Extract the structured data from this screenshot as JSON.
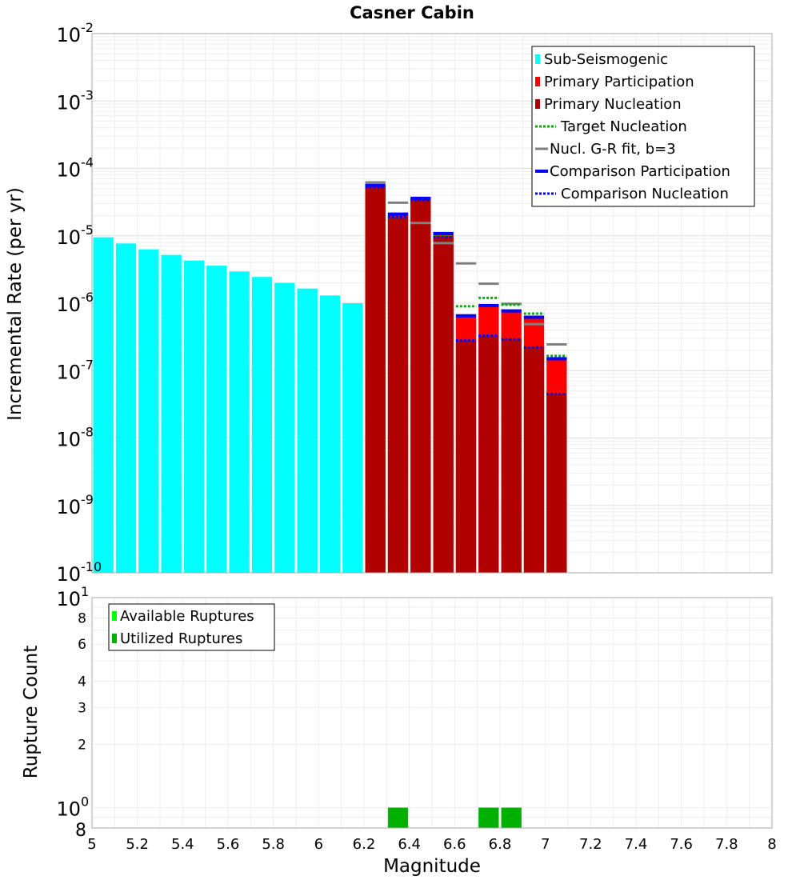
{
  "chart_data": {
    "type": "bar",
    "title": "Casner Cabin",
    "xlabel": "Magnitude",
    "xlim": [
      5,
      8
    ],
    "x_ticks": [
      "5",
      "5.2",
      "5.4",
      "5.6",
      "5.8",
      "6",
      "6.2",
      "6.4",
      "6.6",
      "6.8",
      "7",
      "7.2",
      "7.4",
      "7.6",
      "7.8",
      "8"
    ],
    "top_panel": {
      "ylabel": "Incremental Rate (per yr)",
      "yscale": "log",
      "ylim": [
        1e-10,
        0.01
      ],
      "y_ticks": [
        {
          "base": "10",
          "exp": "-2",
          "value": 0.01
        },
        {
          "base": "10",
          "exp": "-3",
          "value": 0.001
        },
        {
          "base": "10",
          "exp": "-4",
          "value": 0.0001
        },
        {
          "base": "10",
          "exp": "-5",
          "value": 1e-05
        },
        {
          "base": "10",
          "exp": "-6",
          "value": 1e-06
        },
        {
          "base": "10",
          "exp": "-7",
          "value": 1e-07
        },
        {
          "base": "10",
          "exp": "-8",
          "value": 1e-08
        },
        {
          "base": "10",
          "exp": "-9",
          "value": 1e-09
        },
        {
          "base": "10",
          "exp": "-10",
          "value": 1e-10
        }
      ],
      "legend": {
        "position": "top-right",
        "entries": [
          {
            "label": "Sub-Seismogenic",
            "color": "#00ffff",
            "style": "bar"
          },
          {
            "label": "Primary Participation",
            "color": "#ff0000",
            "style": "bar"
          },
          {
            "label": "Primary Nucleation",
            "color": "#b00000",
            "style": "bar"
          },
          {
            "label": "Target Nucleation",
            "color": "#00aa00",
            "style": "dotted"
          },
          {
            "label": "Nucl. G-R fit, b=3",
            "color": "#808080",
            "style": "solid"
          },
          {
            "label": "Comparison Participation",
            "color": "#0000ff",
            "style": "solid"
          },
          {
            "label": "Comparison Nucleation",
            "color": "#0000ff",
            "style": "dotted"
          }
        ]
      },
      "series": [
        {
          "name": "Sub-Seismogenic",
          "color": "#00ffff",
          "bins": [
            5.05,
            5.15,
            5.25,
            5.35,
            5.45,
            5.55,
            5.65,
            5.75,
            5.85,
            5.95,
            6.05,
            6.15
          ],
          "values": [
            9.5e-06,
            7.7e-06,
            6.3e-06,
            5.2e-06,
            4.3e-06,
            3.6e-06,
            2.95e-06,
            2.45e-06,
            2e-06,
            1.65e-06,
            1.3e-06,
            1e-06
          ]
        },
        {
          "name": "Primary Participation",
          "color": "#ff0000",
          "bins": [
            6.25,
            6.35,
            6.45,
            6.55,
            6.65,
            6.75,
            6.85,
            6.95,
            7.05
          ],
          "values": [
            5.6e-05,
            2e-05,
            3.6e-05,
            1.05e-05,
            6.3e-07,
            9e-07,
            7.5e-07,
            6e-07,
            1.5e-07
          ]
        },
        {
          "name": "Primary Nucleation",
          "color": "#b00000",
          "bins": [
            6.25,
            6.35,
            6.45,
            6.55,
            6.65,
            6.75,
            6.85,
            6.95,
            7.05
          ],
          "values": [
            5.2e-05,
            1.9e-05,
            3.4e-05,
            9.5e-06,
            2.8e-07,
            3.3e-07,
            2.9e-07,
            2.2e-07,
            4.5e-08
          ]
        },
        {
          "name": "Target Nucleation",
          "color": "#00aa00",
          "bins": [
            6.25,
            6.35,
            6.45,
            6.55,
            6.65,
            6.75,
            6.85,
            6.95,
            7.05
          ],
          "values": [
            5.2e-05,
            1.9e-05,
            3.4e-05,
            9.8e-06,
            9e-07,
            1.2e-06,
            9.5e-07,
            7e-07,
            1.65e-07
          ]
        },
        {
          "name": "Nucl. G-R fit, b=3",
          "color": "#808080",
          "bins": [
            6.25,
            6.35,
            6.45,
            6.55,
            6.65,
            6.75,
            6.85,
            6.95,
            7.05
          ],
          "values": [
            6.2e-05,
            3.1e-05,
            1.55e-05,
            7.8e-06,
            3.9e-06,
            1.95e-06,
            9.8e-07,
            4.9e-07,
            2.45e-07
          ]
        },
        {
          "name": "Comparison Participation",
          "color": "#0000ff",
          "bins": [
            6.25,
            6.35,
            6.45,
            6.55,
            6.65,
            6.75,
            6.85,
            6.95,
            7.05
          ],
          "values": [
            5.6e-05,
            2.1e-05,
            3.6e-05,
            1.08e-05,
            6.5e-07,
            9.2e-07,
            7.7e-07,
            6.2e-07,
            1.5e-07
          ]
        },
        {
          "name": "Comparison Nucleation",
          "color": "#0000ff",
          "bins": [
            6.25,
            6.35,
            6.45,
            6.55,
            6.65,
            6.75,
            6.85,
            6.95,
            7.05
          ],
          "values": [
            5.2e-05,
            1.9e-05,
            3.4e-05,
            9.5e-06,
            2.8e-07,
            3.3e-07,
            2.9e-07,
            2.2e-07,
            4.5e-08
          ]
        }
      ]
    },
    "bottom_panel": {
      "ylabel": "Rupture Count",
      "yscale": "log",
      "ylim": [
        0.8,
        10
      ],
      "y_ticks": [
        {
          "label": "8",
          "value": 8
        },
        {
          "label": "6",
          "value": 6
        },
        {
          "label": "4",
          "value": 4
        },
        {
          "label": "3",
          "value": 3
        },
        {
          "label": "2",
          "value": 2
        }
      ],
      "y_major_ticks": [
        {
          "base": "10",
          "exp": "1",
          "value": 10
        },
        {
          "base": "10",
          "exp": "0",
          "value": 1
        }
      ],
      "y_bottom_label": {
        "label": "8",
        "value": 0.8
      },
      "legend": {
        "position": "top-left",
        "entries": [
          {
            "label": "Available Ruptures",
            "color": "#00ff00"
          },
          {
            "label": "Utilized Ruptures",
            "color": "#00b000"
          }
        ]
      },
      "series": [
        {
          "name": "Utilized Ruptures",
          "color": "#00b000",
          "bins": [
            6.35,
            6.75,
            6.85
          ],
          "values": [
            1,
            1,
            1
          ]
        }
      ]
    }
  }
}
